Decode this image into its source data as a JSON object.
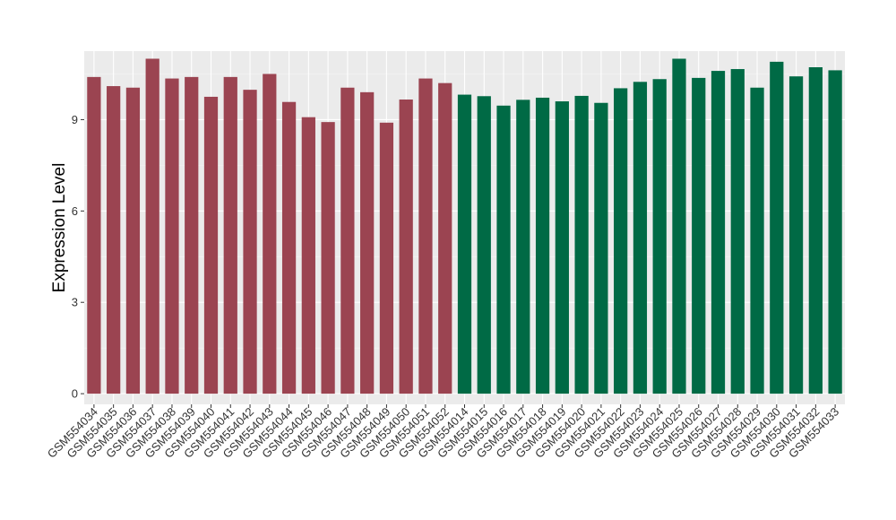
{
  "chart_data": {
    "type": "bar",
    "title": "",
    "xlabel": "",
    "ylabel": "Expression Level",
    "ylim": [
      -0.35,
      11.25
    ],
    "yticks": [
      0,
      3,
      6,
      9
    ],
    "grid": true,
    "panel_background": "#ebebeb",
    "categories": [
      "GSM554034",
      "GSM554035",
      "GSM554036",
      "GSM554037",
      "GSM554038",
      "GSM554039",
      "GSM554040",
      "GSM554041",
      "GSM554042",
      "GSM554043",
      "GSM554044",
      "GSM554045",
      "GSM554046",
      "GSM554047",
      "GSM554048",
      "GSM554049",
      "GSM554050",
      "GSM554051",
      "GSM554052",
      "GSM554014",
      "GSM554015",
      "GSM554016",
      "GSM554017",
      "GSM554018",
      "GSM554019",
      "GSM554020",
      "GSM554021",
      "GSM554022",
      "GSM554023",
      "GSM554024",
      "GSM554025",
      "GSM554026",
      "GSM554027",
      "GSM554028",
      "GSM554029",
      "GSM554030",
      "GSM554031",
      "GSM554032",
      "GSM554033"
    ],
    "values": [
      10.4,
      10.1,
      10.05,
      11.0,
      10.35,
      10.4,
      9.75,
      10.4,
      9.98,
      10.5,
      9.58,
      9.08,
      8.92,
      10.05,
      9.9,
      8.9,
      9.66,
      10.35,
      10.2,
      9.82,
      9.77,
      9.46,
      9.65,
      9.72,
      9.6,
      9.78,
      9.55,
      10.03,
      10.24,
      10.33,
      11.0,
      10.37,
      10.6,
      10.66,
      10.05,
      10.9,
      10.42,
      10.72,
      10.62
    ],
    "bar_colors": [
      "#9b4451",
      "#9b4451",
      "#9b4451",
      "#9b4451",
      "#9b4451",
      "#9b4451",
      "#9b4451",
      "#9b4451",
      "#9b4451",
      "#9b4451",
      "#9b4451",
      "#9b4451",
      "#9b4451",
      "#9b4451",
      "#9b4451",
      "#9b4451",
      "#9b4451",
      "#9b4451",
      "#9b4451",
      "#006a45",
      "#006a45",
      "#006a45",
      "#006a45",
      "#006a45",
      "#006a45",
      "#006a45",
      "#006a45",
      "#006a45",
      "#006a45",
      "#006a45",
      "#006a45",
      "#006a45",
      "#006a45",
      "#006a45",
      "#006a45",
      "#006a45",
      "#006a45",
      "#006a45",
      "#006a45"
    ]
  }
}
